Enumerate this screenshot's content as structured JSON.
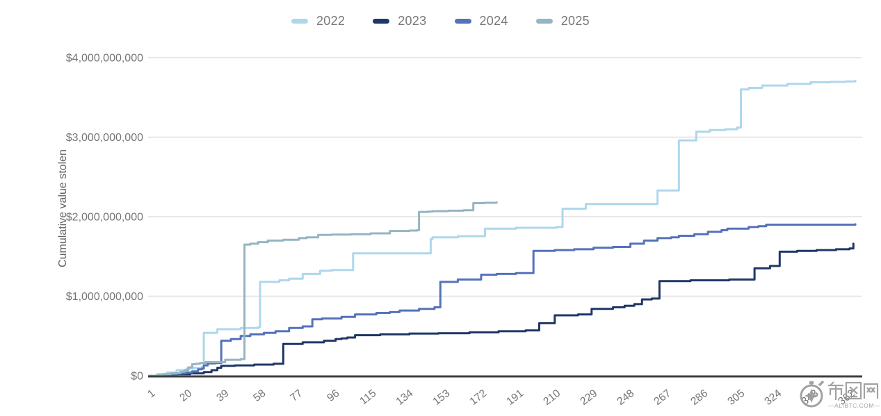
{
  "chart_data": {
    "type": "line",
    "subtype": "step-cumulative",
    "title": "",
    "xlabel": "",
    "ylabel": "Cumulative value stolen",
    "unit": "USD",
    "values_unit": "billions of USD",
    "xlim": [
      1,
      365
    ],
    "ylim": [
      0,
      4000000000
    ],
    "grid": "horizontal",
    "legend_position": "top-center",
    "x_ticks": [
      1,
      20,
      39,
      58,
      77,
      96,
      115,
      134,
      153,
      172,
      191,
      210,
      229,
      248,
      267,
      286,
      305,
      324,
      343,
      362
    ],
    "y_ticks": [
      {
        "value": 0,
        "label": "$0"
      },
      {
        "value": 1,
        "label": "$1,000,000,000"
      },
      {
        "value": 2,
        "label": "$2,000,000,000"
      },
      {
        "value": 3,
        "label": "$3,000,000,000"
      },
      {
        "value": 4,
        "label": "$4,000,000,000"
      }
    ],
    "colors": {
      "grid": "#e0e0e0",
      "axis": "#3f3f3f",
      "tick_text": "#757575",
      "axis_title_text": "#616161"
    },
    "series": [
      {
        "name": "2022",
        "color": "#aed7ec",
        "points": [
          [
            1,
            0.0
          ],
          [
            5,
            0.02
          ],
          [
            10,
            0.04
          ],
          [
            15,
            0.07
          ],
          [
            20,
            0.09
          ],
          [
            24,
            0.1
          ],
          [
            28,
            0.11
          ],
          [
            29,
            0.54
          ],
          [
            36,
            0.585
          ],
          [
            48,
            0.6
          ],
          [
            57,
            0.61
          ],
          [
            58,
            1.18
          ],
          [
            68,
            1.2
          ],
          [
            73,
            1.22
          ],
          [
            80,
            1.28
          ],
          [
            89,
            1.32
          ],
          [
            95,
            1.33
          ],
          [
            106,
            1.54
          ],
          [
            146,
            1.72
          ],
          [
            147,
            1.74
          ],
          [
            160,
            1.755
          ],
          [
            174,
            1.85
          ],
          [
            190,
            1.86
          ],
          [
            211,
            1.87
          ],
          [
            214,
            2.1
          ],
          [
            226,
            2.16
          ],
          [
            263,
            2.33
          ],
          [
            274,
            2.96
          ],
          [
            283,
            3.07
          ],
          [
            290,
            3.09
          ],
          [
            298,
            3.1
          ],
          [
            304,
            3.12
          ],
          [
            306,
            3.6
          ],
          [
            310,
            3.62
          ],
          [
            317,
            3.65
          ],
          [
            330,
            3.67
          ],
          [
            342,
            3.69
          ],
          [
            352,
            3.695
          ],
          [
            360,
            3.7
          ],
          [
            365,
            3.71
          ]
        ]
      },
      {
        "name": "2023",
        "color": "#1e3767",
        "points": [
          [
            1,
            0.0
          ],
          [
            8,
            0.01
          ],
          [
            15,
            0.02
          ],
          [
            22,
            0.03
          ],
          [
            29,
            0.045
          ],
          [
            33,
            0.07
          ],
          [
            36,
            0.1
          ],
          [
            38,
            0.125
          ],
          [
            45,
            0.13
          ],
          [
            55,
            0.14
          ],
          [
            65,
            0.15
          ],
          [
            70,
            0.4
          ],
          [
            80,
            0.42
          ],
          [
            91,
            0.44
          ],
          [
            97,
            0.46
          ],
          [
            100,
            0.47
          ],
          [
            103,
            0.48
          ],
          [
            107,
            0.51
          ],
          [
            120,
            0.52
          ],
          [
            135,
            0.53
          ],
          [
            150,
            0.535
          ],
          [
            166,
            0.545
          ],
          [
            181,
            0.56
          ],
          [
            195,
            0.57
          ],
          [
            202,
            0.66
          ],
          [
            210,
            0.76
          ],
          [
            222,
            0.77
          ],
          [
            229,
            0.84
          ],
          [
            240,
            0.86
          ],
          [
            246,
            0.88
          ],
          [
            251,
            0.9
          ],
          [
            255,
            0.96
          ],
          [
            260,
            0.97
          ],
          [
            264,
            1.19
          ],
          [
            280,
            1.2
          ],
          [
            300,
            1.21
          ],
          [
            313,
            1.35
          ],
          [
            321,
            1.38
          ],
          [
            326,
            1.56
          ],
          [
            335,
            1.57
          ],
          [
            345,
            1.58
          ],
          [
            355,
            1.59
          ],
          [
            362,
            1.6
          ],
          [
            364,
            1.66
          ]
        ]
      },
      {
        "name": "2024",
        "color": "#5472ba",
        "points": [
          [
            1,
            0.0
          ],
          [
            8,
            0.015
          ],
          [
            15,
            0.03
          ],
          [
            20,
            0.04
          ],
          [
            23,
            0.055
          ],
          [
            26,
            0.08
          ],
          [
            28,
            0.09
          ],
          [
            29,
            0.13
          ],
          [
            31,
            0.155
          ],
          [
            35,
            0.16
          ],
          [
            38,
            0.44
          ],
          [
            43,
            0.46
          ],
          [
            48,
            0.5
          ],
          [
            53,
            0.52
          ],
          [
            60,
            0.54
          ],
          [
            66,
            0.56
          ],
          [
            73,
            0.6
          ],
          [
            80,
            0.62
          ],
          [
            85,
            0.71
          ],
          [
            90,
            0.72
          ],
          [
            100,
            0.74
          ],
          [
            107,
            0.77
          ],
          [
            118,
            0.79
          ],
          [
            125,
            0.8
          ],
          [
            130,
            0.82
          ],
          [
            140,
            0.84
          ],
          [
            148,
            0.86
          ],
          [
            151,
            1.18
          ],
          [
            160,
            1.21
          ],
          [
            172,
            1.27
          ],
          [
            180,
            1.28
          ],
          [
            190,
            1.29
          ],
          [
            199,
            1.57
          ],
          [
            210,
            1.58
          ],
          [
            220,
            1.59
          ],
          [
            230,
            1.61
          ],
          [
            240,
            1.62
          ],
          [
            249,
            1.66
          ],
          [
            256,
            1.7
          ],
          [
            263,
            1.73
          ],
          [
            270,
            1.74
          ],
          [
            274,
            1.76
          ],
          [
            282,
            1.78
          ],
          [
            289,
            1.81
          ],
          [
            296,
            1.83
          ],
          [
            299,
            1.85
          ],
          [
            310,
            1.87
          ],
          [
            315,
            1.88
          ],
          [
            319,
            1.9
          ],
          [
            340,
            1.9
          ],
          [
            365,
            1.905
          ]
        ]
      },
      {
        "name": "2025",
        "color": "#94b5c1",
        "points": [
          [
            1,
            0.0
          ],
          [
            5,
            0.01
          ],
          [
            8,
            0.02
          ],
          [
            12,
            0.03
          ],
          [
            17,
            0.05
          ],
          [
            19,
            0.07
          ],
          [
            21,
            0.105
          ],
          [
            23,
            0.145
          ],
          [
            25,
            0.15
          ],
          [
            27,
            0.16
          ],
          [
            30,
            0.17
          ],
          [
            33,
            0.17
          ],
          [
            40,
            0.2
          ],
          [
            48,
            0.21
          ],
          [
            50,
            1.65
          ],
          [
            53,
            1.66
          ],
          [
            57,
            1.68
          ],
          [
            62,
            1.7
          ],
          [
            70,
            1.71
          ],
          [
            78,
            1.73
          ],
          [
            82,
            1.74
          ],
          [
            88,
            1.77
          ],
          [
            95,
            1.775
          ],
          [
            105,
            1.78
          ],
          [
            115,
            1.79
          ],
          [
            125,
            1.82
          ],
          [
            135,
            1.825
          ],
          [
            139,
            1.83
          ],
          [
            140,
            2.06
          ],
          [
            145,
            2.065
          ],
          [
            147,
            2.07
          ],
          [
            155,
            2.075
          ],
          [
            163,
            2.08
          ],
          [
            168,
            2.17
          ],
          [
            174,
            2.175
          ],
          [
            180,
            2.18
          ]
        ]
      }
    ]
  },
  "watermark": {
    "site_name": "币圈网",
    "site_url_label": "—ALIBTC.COM—"
  }
}
